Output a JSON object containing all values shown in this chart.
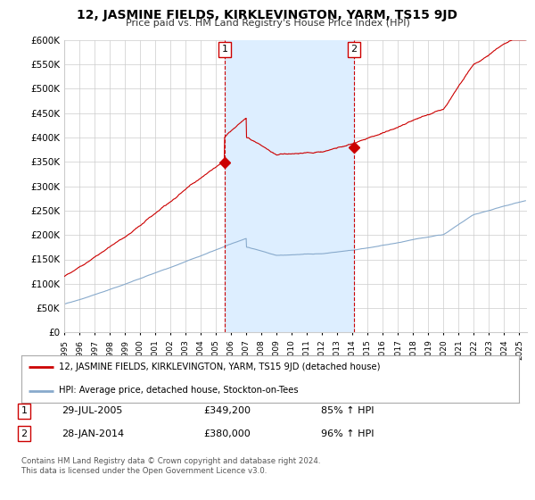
{
  "title": "12, JASMINE FIELDS, KIRKLEVINGTON, YARM, TS15 9JD",
  "subtitle": "Price paid vs. HM Land Registry's House Price Index (HPI)",
  "ylabel_ticks": [
    0,
    50000,
    100000,
    150000,
    200000,
    250000,
    300000,
    350000,
    400000,
    450000,
    500000,
    550000,
    600000
  ],
  "ylabel_labels": [
    "£0",
    "£50K",
    "£100K",
    "£150K",
    "£200K",
    "£250K",
    "£300K",
    "£350K",
    "£400K",
    "£450K",
    "£500K",
    "£550K",
    "£600K"
  ],
  "ylim": [
    0,
    600000
  ],
  "xlim_start": 1995.0,
  "xlim_end": 2025.5,
  "sale1_x": 2005.57,
  "sale1_y": 349200,
  "sale1_label": "1",
  "sale1_date": "29-JUL-2005",
  "sale1_price": "£349,200",
  "sale1_hpi": "85% ↑ HPI",
  "sale2_x": 2014.08,
  "sale2_y": 380000,
  "sale2_label": "2",
  "sale2_date": "28-JAN-2014",
  "sale2_price": "£380,000",
  "sale2_hpi": "96% ↑ HPI",
  "red_line_color": "#cc0000",
  "blue_line_color": "#88aacc",
  "shade_color": "#ddeeff",
  "legend_label_red": "12, JASMINE FIELDS, KIRKLEVINGTON, YARM, TS15 9JD (detached house)",
  "legend_label_blue": "HPI: Average price, detached house, Stockton-on-Tees",
  "footnote": "Contains HM Land Registry data © Crown copyright and database right 2024.\nThis data is licensed under the Open Government Licence v3.0.",
  "background_color": "#ffffff",
  "grid_color": "#cccccc",
  "vline_color": "#cc0000"
}
